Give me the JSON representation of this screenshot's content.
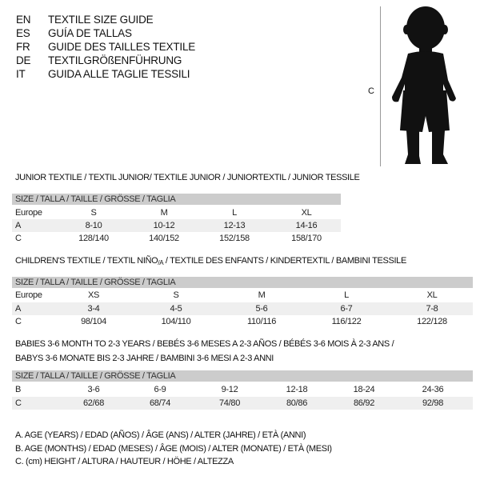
{
  "header": {
    "languages": [
      {
        "code": "EN",
        "title": "TEXTILE SIZE GUIDE"
      },
      {
        "code": "ES",
        "title": "GUÍA DE TALLAS"
      },
      {
        "code": "FR",
        "title": "GUIDE DES TAILLES TEXTILE"
      },
      {
        "code": "DE",
        "title": "TEXTILGRÖßENFÜHRUNG"
      },
      {
        "code": "IT",
        "title": "GUIDA ALLE TAGLIE TESSILI"
      }
    ]
  },
  "figure": {
    "height_label": "C"
  },
  "junior": {
    "title": "JUNIOR TEXTILE / TEXTIL JUNIOR/ TEXTILE JUNIOR / JUNIORTEXTIL / JUNIOR TESSILE",
    "header": "SIZE / TALLA / TAILLE / GRÖSSE / TAGLIA",
    "rows": [
      {
        "label": "Europe",
        "cells": [
          "S",
          "M",
          "L",
          "XL"
        ]
      },
      {
        "label": "A",
        "cells": [
          "8-10",
          "10-12",
          "12-13",
          "14-16"
        ]
      },
      {
        "label": "C",
        "cells": [
          "128/140",
          "140/152",
          "152/158",
          "158/170"
        ]
      }
    ]
  },
  "children": {
    "title_main": "CHILDREN'S TEXTILE / TEXTIL NIÑO",
    "title_sub": "/A",
    "title_rest": " / TEXTILE DES ENFANTS / KINDERTEXTIL / BAMBINI TESSILE",
    "header": "SIZE / TALLA / TAILLE / GRÖSSE / TAGLIA",
    "rows": [
      {
        "label": "Europe",
        "cells": [
          "XS",
          "S",
          "M",
          "L",
          "XL"
        ]
      },
      {
        "label": "A",
        "cells": [
          "3-4",
          "4-5",
          "5-6",
          "6-7",
          "7-8"
        ]
      },
      {
        "label": "C",
        "cells": [
          "98/104",
          "104/110",
          "110/116",
          "116/122",
          "122/128"
        ]
      }
    ]
  },
  "babies": {
    "title_line1": "BABIES 3-6 MONTH TO 2-3 YEARS / BEBÉS 3-6 MESES A 2-3 AÑOS / BÉBÉS 3-6 MOIS À 2-3 ANS /",
    "title_line2": "BABYS 3-6 MONATE BIS 2-3 JAHRE / BAMBINI 3-6 MESI A 2-3 ANNI",
    "header": "SIZE / TALLA / TAILLE / GRÖSSE / TAGLIA",
    "rows": [
      {
        "label": "B",
        "cells": [
          "3-6",
          "6-9",
          "9-12",
          "12-18",
          "18-24",
          "24-36"
        ]
      },
      {
        "label": "C",
        "cells": [
          "62/68",
          "68/74",
          "74/80",
          "80/86",
          "86/92",
          "92/98"
        ]
      }
    ]
  },
  "legend": [
    "A. AGE (YEARS) / EDAD (AÑOS) / ÂGE (ANS) / ALTER (JAHRE) / ETÀ (ANNI)",
    "B. AGE (MONTHS) / EDAD (MESES) / ÂGE (MOIS) / ALTER (MONATE) / ETÀ (MESI)",
    "C. (cm) HEIGHT / ALTURA / HAUTEUR / HÖHE / ALTEZZA"
  ]
}
